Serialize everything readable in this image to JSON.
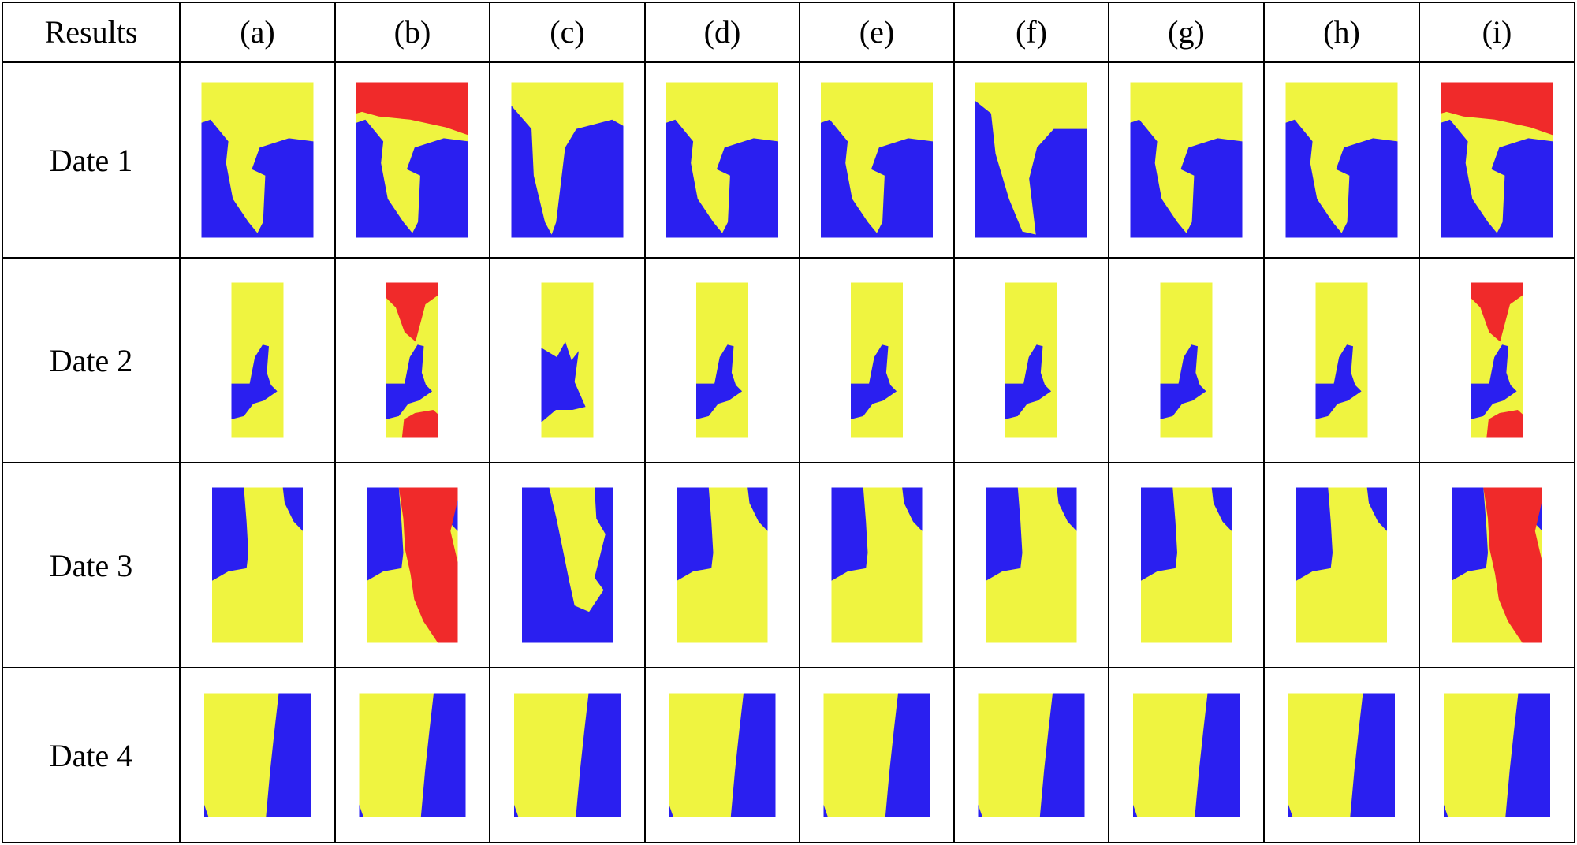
{
  "header": {
    "corner": "Results",
    "columns": [
      "(a)",
      "(b)",
      "(c)",
      "(d)",
      "(e)",
      "(f)",
      "(g)",
      "(h)",
      "(i)"
    ]
  },
  "rows": [
    {
      "label": "Date 1",
      "shape": "date1",
      "red_columns": [
        "(b)",
        "(i)"
      ]
    },
    {
      "label": "Date 2",
      "shape": "date2",
      "red_columns": [
        "(b)",
        "(i)"
      ]
    },
    {
      "label": "Date 3",
      "shape": "date3",
      "red_columns": [
        "(b)",
        "(i)"
      ]
    },
    {
      "label": "Date 4",
      "shape": "date4",
      "red_columns": []
    }
  ],
  "colors": {
    "yellow": "#EFF440",
    "blue": "#2A1FF0",
    "red": "#F02A2A",
    "grid": "#000000"
  }
}
